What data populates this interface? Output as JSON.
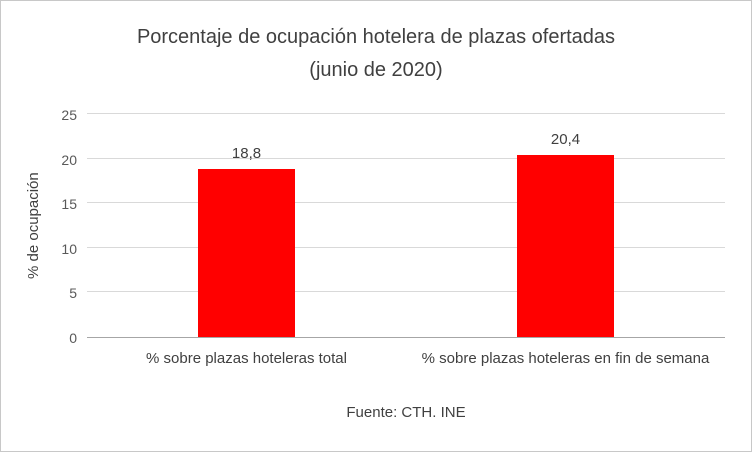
{
  "chart_data": {
    "type": "bar",
    "title": "Porcentaje de ocupación hotelera de plazas ofertadas (junio de 2020)",
    "categories": [
      "% sobre plazas hoteleras total",
      "% sobre plazas hoteleras en fin de semana"
    ],
    "values": [
      18.8,
      20.4
    ],
    "value_labels": [
      "18,8",
      "20,4"
    ],
    "xlabel": "",
    "ylabel": "% de ocupación",
    "ylim": [
      0,
      25
    ],
    "yticks": [
      0,
      5,
      10,
      15,
      20,
      25
    ],
    "grid": true,
    "legend": false,
    "bar_color": "#ff0000",
    "source": "Fuente: CTH. INE"
  }
}
